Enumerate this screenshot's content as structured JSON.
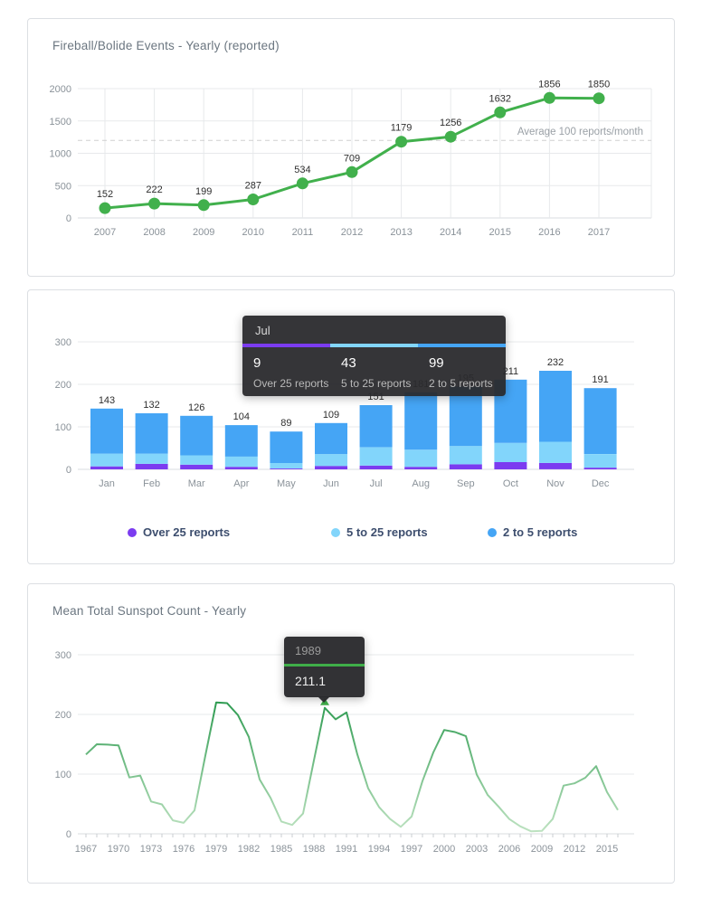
{
  "chart_data": [
    {
      "type": "line",
      "title": "Fireball/Bolide Events - Yearly (reported)",
      "x": [
        2007,
        2008,
        2009,
        2010,
        2011,
        2012,
        2013,
        2014,
        2015,
        2016,
        2017
      ],
      "values": [
        152,
        222,
        199,
        287,
        534,
        709,
        1179,
        1256,
        1632,
        1856,
        1850
      ],
      "ylim": [
        0,
        2000
      ],
      "yticks": [
        0,
        500,
        1000,
        1500,
        2000
      ],
      "grid": "both",
      "point_labels": true,
      "color": "#41b04c",
      "annotation": {
        "label": "Average 100 reports/month",
        "value": 1200
      }
    },
    {
      "type": "bar",
      "stacked": true,
      "categories": [
        "Jan",
        "Feb",
        "Mar",
        "Apr",
        "May",
        "Jun",
        "Jul",
        "Aug",
        "Sep",
        "Oct",
        "Nov",
        "Dec"
      ],
      "series": [
        {
          "name": "Over 25 reports",
          "color": "#7b3cf0",
          "values": [
            7,
            13,
            11,
            6,
            2,
            8,
            9,
            6,
            12,
            17,
            15,
            4
          ]
        },
        {
          "name": "5 to 25 reports",
          "color": "#82d5fb",
          "values": [
            30,
            24,
            22,
            24,
            13,
            28,
            43,
            40,
            43,
            45,
            50,
            32
          ]
        },
        {
          "name": "2 to 5 reports",
          "color": "#45a5f5",
          "values": [
            106,
            95,
            93,
            74,
            74,
            73,
            99,
            135,
            140,
            149,
            167,
            155
          ]
        }
      ],
      "totals": [
        143,
        132,
        126,
        104,
        89,
        109,
        151,
        181,
        195,
        211,
        232,
        191
      ],
      "ylim": [
        0,
        300
      ],
      "yticks": [
        0,
        100,
        200,
        300
      ],
      "legend_position": "bottom",
      "tooltip": {
        "category": "Jul",
        "values": [
          9,
          43,
          99
        ]
      }
    },
    {
      "type": "line",
      "title": "Mean Total Sunspot Count - Yearly",
      "x": [
        1967,
        1968,
        1969,
        1970,
        1971,
        1972,
        1973,
        1974,
        1975,
        1976,
        1977,
        1978,
        1979,
        1980,
        1981,
        1982,
        1983,
        1984,
        1985,
        1986,
        1987,
        1988,
        1989,
        1990,
        1991,
        1992,
        1993,
        1994,
        1995,
        1996,
        1997,
        1998,
        1999,
        2000,
        2001,
        2002,
        2003,
        2004,
        2005,
        2006,
        2007,
        2008,
        2009,
        2010,
        2011,
        2012,
        2013,
        2014,
        2015,
        2016
      ],
      "values": [
        132.9,
        150.0,
        149.4,
        148.0,
        94.4,
        97.6,
        54.1,
        49.2,
        22.5,
        18.4,
        39.3,
        131.0,
        220.1,
        218.9,
        198.9,
        162.4,
        91.0,
        60.5,
        20.6,
        14.8,
        33.9,
        123.0,
        211.1,
        191.8,
        203.3,
        133.0,
        76.1,
        44.9,
        25.1,
        11.6,
        28.9,
        88.3,
        136.3,
        173.9,
        170.4,
        163.6,
        99.3,
        65.3,
        45.8,
        24.7,
        12.6,
        4.2,
        4.8,
        24.9,
        80.8,
        84.5,
        94.0,
        113.3,
        69.8,
        39.8
      ],
      "ylim": [
        0,
        300
      ],
      "yticks": [
        0,
        100,
        200,
        300
      ],
      "xtick_interval": 3,
      "grid": "horizontal",
      "color_high": "#0f8c39",
      "color_low": "#cdeacd",
      "tooltip": {
        "x": "1989",
        "value": "211.1"
      }
    }
  ]
}
